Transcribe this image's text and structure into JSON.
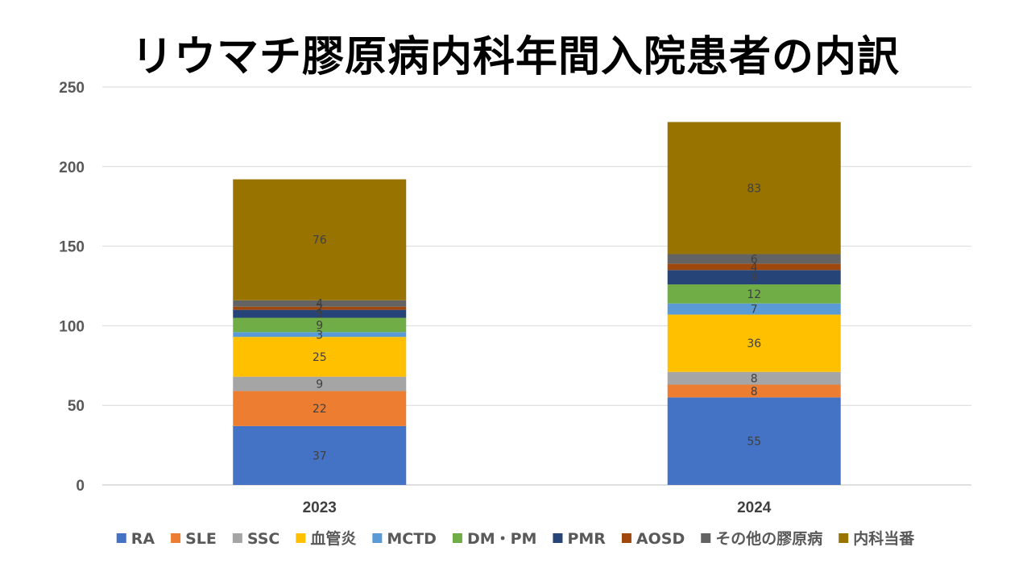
{
  "chart_data": {
    "type": "bar",
    "stacked": true,
    "title": "リウマチ膠原病内科年間入院患者の内訳",
    "categories": [
      "2023",
      "2024"
    ],
    "ylim": [
      0,
      250
    ],
    "yticks": [
      0,
      50,
      100,
      150,
      200,
      250
    ],
    "grid": true,
    "legend": "bottom",
    "series": [
      {
        "name": "RA",
        "color": "#4472C4",
        "values": [
          37,
          55
        ]
      },
      {
        "name": "SLE",
        "color": "#ED7D31",
        "values": [
          22,
          8
        ]
      },
      {
        "name": "SSC",
        "color": "#A5A5A5",
        "values": [
          9,
          8
        ]
      },
      {
        "name": "血管炎",
        "color": "#FFC000",
        "values": [
          25,
          36
        ]
      },
      {
        "name": "MCTD",
        "color": "#5B9BD5",
        "values": [
          3,
          7
        ]
      },
      {
        "name": "DM・PM",
        "color": "#70AD47",
        "values": [
          9,
          12
        ]
      },
      {
        "name": "PMR",
        "color": "#264478",
        "values": [
          5,
          9
        ]
      },
      {
        "name": "AOSD",
        "color": "#9E480E",
        "values": [
          2,
          4
        ]
      },
      {
        "name": "その他の膠原病",
        "color": "#636363",
        "values": [
          4,
          6
        ]
      },
      {
        "name": "内科当番",
        "color": "#997300",
        "values": [
          76,
          83
        ]
      }
    ]
  }
}
